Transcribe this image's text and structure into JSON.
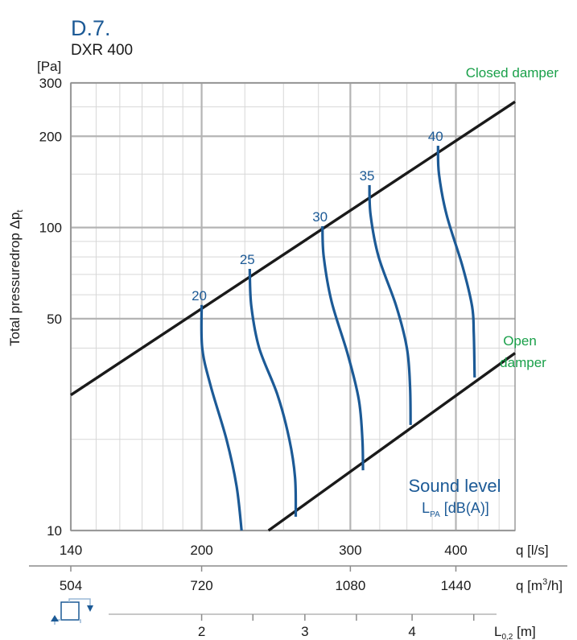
{
  "chart_data": {
    "type": "line",
    "title": "D.7.",
    "subtitle": "DXR 400",
    "ylabel": "Total pressuredrop Δp",
    "ylabel_sub": "t",
    "yunit": "[Pa]",
    "yscale": "log",
    "xscale": "log",
    "ylim": [
      10,
      300
    ],
    "xlim": [
      140,
      470
    ],
    "y_ticks": [
      {
        "value": 10,
        "label": "10"
      },
      {
        "value": 50,
        "label": "50"
      },
      {
        "value": 100,
        "label": "100"
      },
      {
        "value": 200,
        "label": "200"
      },
      {
        "value": 300,
        "label": "300"
      }
    ],
    "y_minor_grid": [
      20,
      30,
      40,
      60,
      70,
      80,
      90,
      150,
      250
    ],
    "x_ticks": [
      {
        "value": 140,
        "label": "140"
      },
      {
        "value": 200,
        "label": "200"
      },
      {
        "value": 300,
        "label": "300"
      },
      {
        "value": 400,
        "label": "400"
      }
    ],
    "x_minor_grid": [
      150,
      160,
      170,
      180,
      190,
      225,
      250,
      275,
      325,
      350,
      375,
      425,
      450
    ],
    "xlabel": "q [l/s]",
    "x2_ticks": [
      {
        "value": 140,
        "label": "504"
      },
      {
        "value": 200,
        "label": "720"
      },
      {
        "value": 300,
        "label": "1080"
      },
      {
        "value": 400,
        "label": "1440"
      }
    ],
    "x2label_main": "q [m",
    "x2label_sup": "3",
    "x2label_end": "/h]",
    "x3_ticks": [
      {
        "value": 200,
        "label": "2"
      },
      {
        "value": 230,
        "label": ""
      },
      {
        "value": 265,
        "label": "3"
      },
      {
        "value": 305,
        "label": ""
      },
      {
        "value": 355,
        "label": "4"
      },
      {
        "value": 420,
        "label": ""
      }
    ],
    "x3label_main": "L",
    "x3label_sub": "0,2",
    "x3label_end": " [m]",
    "closed_damper": {
      "label": "Closed damper",
      "points": [
        [
          140,
          28
        ],
        [
          470,
          260
        ]
      ]
    },
    "open_damper": {
      "label_line1": "Open",
      "label_line2": "damper",
      "points": [
        [
          240,
          10
        ],
        [
          470,
          38.5
        ]
      ]
    },
    "sound_level_title": "Sound level",
    "sound_level_unit_main": "L",
    "sound_level_unit_sub": "PA",
    "sound_level_unit_end": " [dB(A)]",
    "series": [
      {
        "name": "20",
        "points": [
          [
            200,
            55.5
          ],
          [
            200.3,
            40
          ],
          [
            205,
            30
          ],
          [
            214,
            20
          ],
          [
            220,
            14
          ],
          [
            223,
            10
          ]
        ]
      },
      {
        "name": "25",
        "points": [
          [
            228,
            73
          ],
          [
            229,
            55
          ],
          [
            234,
            40
          ],
          [
            246,
            28
          ],
          [
            254,
            20
          ],
          [
            258,
            15
          ],
          [
            258.5,
            11.1
          ]
        ]
      },
      {
        "name": "30",
        "points": [
          [
            278,
            101
          ],
          [
            279,
            80
          ],
          [
            285,
            57
          ],
          [
            298,
            38
          ],
          [
            307,
            27
          ],
          [
            310,
            20
          ],
          [
            310.5,
            15.8
          ]
        ]
      },
      {
        "name": "35",
        "points": [
          [
            316,
            138
          ],
          [
            317,
            110
          ],
          [
            324,
            80
          ],
          [
            340,
            55
          ],
          [
            350,
            40
          ],
          [
            353,
            30
          ],
          [
            353.5,
            22.3
          ]
        ]
      },
      {
        "name": "40",
        "points": [
          [
            381,
            186
          ],
          [
            382,
            150
          ],
          [
            390,
            110
          ],
          [
            407,
            75
          ],
          [
            418,
            55
          ],
          [
            420,
            45
          ],
          [
            421,
            32
          ]
        ]
      }
    ],
    "grid": true,
    "legend": "none"
  }
}
